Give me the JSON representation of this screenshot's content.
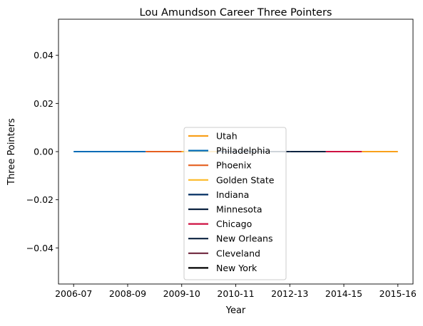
{
  "chart_data": {
    "type": "line",
    "title": "Lou Amundson Career Three Pointers",
    "xlabel": "Year",
    "ylabel": "Three Pointers",
    "x_ticks": [
      "2006-07",
      "2008-09",
      "2009-10",
      "2010-11",
      "2012-13",
      "2014-15",
      "2015-16"
    ],
    "y_ticks": [
      -0.04,
      -0.02,
      0.0,
      0.02,
      0.04
    ],
    "y_tick_labels": [
      "−0.04",
      "−0.02",
      "0.00",
      "0.02",
      "0.04"
    ],
    "ylim": [
      -0.055,
      0.055
    ],
    "xlim": [
      -0.42,
      9.42
    ],
    "grid": false,
    "legend_position": "lower center",
    "series": [
      {
        "name": "Utah",
        "color": "#F9A01B",
        "x": [
          8,
          9
        ],
        "y": [
          0,
          0
        ]
      },
      {
        "name": "Philadelphia",
        "color": "#006BB6",
        "x": [
          0,
          2
        ],
        "y": [
          0,
          0
        ]
      },
      {
        "name": "Phoenix",
        "color": "#E56020",
        "x": [
          2,
          3
        ],
        "y": [
          0,
          0
        ]
      },
      {
        "name": "Golden State",
        "color": "#FDB927",
        "x": [
          3,
          4
        ],
        "y": [
          0,
          0
        ]
      },
      {
        "name": "Indiana",
        "color": "#002D62",
        "x": [
          4,
          5
        ],
        "y": [
          0,
          0
        ]
      },
      {
        "name": "Minnesota",
        "color": "#0C2340",
        "x": [
          5,
          6
        ],
        "y": [
          0,
          0
        ]
      },
      {
        "name": "Chicago",
        "color": "#CE1141",
        "x": [
          7,
          8
        ],
        "y": [
          0,
          0
        ]
      },
      {
        "name": "New Orleans",
        "color": "#0C2340",
        "x": [
          6,
          7
        ],
        "y": [
          0,
          0
        ]
      },
      {
        "name": "Cleveland",
        "color": "#6F263D",
        "x": [],
        "y": []
      },
      {
        "name": "New York",
        "color": "#000000",
        "x": [],
        "y": []
      }
    ]
  }
}
